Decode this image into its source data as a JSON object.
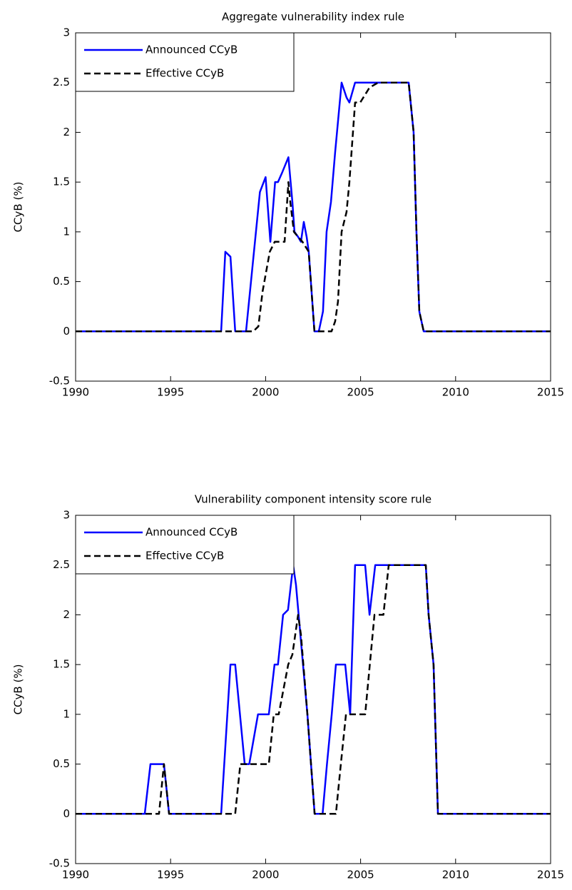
{
  "chart_data": [
    {
      "type": "line",
      "title": "Aggregate vulnerability index rule",
      "ylabel": "CCyB (%)",
      "xlim": [
        1990,
        2015
      ],
      "xticks": [
        1990,
        1995,
        2000,
        2005,
        2010,
        2015
      ],
      "ylim": [
        -0.5,
        3
      ],
      "yticks": [
        -0.5,
        0,
        0.5,
        1,
        1.5,
        2,
        2.5,
        3
      ],
      "legend": "northwest",
      "series": [
        {
          "name": "Announced CCyB",
          "color": "#0000ff",
          "style": "solid",
          "x": [
            1990,
            1997.66,
            1997.88,
            1998.15,
            1998.4,
            1998.97,
            1999.7,
            2000.0,
            2000.25,
            2000.5,
            2000.65,
            2000.88,
            2001.2,
            2001.41,
            2001.52,
            2001.71,
            2001.86,
            2002.01,
            2002.16,
            2002.27,
            2002.57,
            2002.8,
            2003.02,
            2003.21,
            2003.44,
            2003.66,
            2004.0,
            2004.26,
            2004.41,
            2004.71,
            2007.53,
            2007.79,
            2007.94,
            2008.09,
            2008.32,
            2015
          ],
          "values": [
            0,
            0,
            0.8,
            0.75,
            0,
            0,
            1.4,
            1.55,
            0.9,
            1.5,
            1.5,
            1.6,
            1.75,
            1.3,
            1.0,
            0.95,
            0.9,
            1.1,
            0.95,
            0.8,
            0,
            0,
            0.2,
            1.0,
            1.3,
            1.8,
            2.5,
            2.35,
            2.3,
            2.5,
            2.5,
            2.0,
            1.0,
            0.2,
            0,
            0
          ]
        },
        {
          "name": "Effective CCyB",
          "color": "#000000",
          "style": "dashed",
          "x": [
            1990,
            1999.35,
            1999.62,
            1999.84,
            2000.22,
            2000.48,
            2001.0,
            2001.2,
            2001.3,
            2001.49,
            2001.71,
            2001.94,
            2002.27,
            2002.57,
            2003.47,
            2003.66,
            2003.81,
            2004.0,
            2004.26,
            2004.41,
            2004.71,
            2004.98,
            2005.47,
            2005.92,
            2007.53,
            2007.79,
            2007.94,
            2008.09,
            2008.32,
            2015
          ],
          "values": [
            0,
            0,
            0.05,
            0.4,
            0.8,
            0.9,
            0.9,
            1.5,
            1.3,
            1.0,
            0.95,
            0.9,
            0.8,
            0,
            0,
            0.1,
            0.3,
            1.0,
            1.2,
            1.5,
            2.3,
            2.3,
            2.45,
            2.5,
            2.5,
            2.0,
            1.0,
            0.2,
            0,
            0
          ]
        }
      ]
    },
    {
      "type": "line",
      "title": "Vulnerability component intensity score rule",
      "ylabel": "CCyB (%)",
      "xlim": [
        1990,
        2015
      ],
      "xticks": [
        1990,
        1995,
        2000,
        2005,
        2010,
        2015
      ],
      "ylim": [
        -0.5,
        3
      ],
      "yticks": [
        -0.5,
        0,
        0.5,
        1,
        1.5,
        2,
        2.5,
        3
      ],
      "legend": "northwest",
      "series": [
        {
          "name": "Announced CCyB",
          "color": "#0000ff",
          "style": "solid",
          "x": [
            1990,
            1993.64,
            1993.94,
            1994.65,
            1994.92,
            1997.66,
            1998.15,
            1998.4,
            1998.9,
            1999.14,
            1999.6,
            2000.17,
            2000.47,
            2000.65,
            2000.92,
            2001.18,
            2001.45,
            2001.6,
            2002.2,
            2002.58,
            2003.0,
            2003.23,
            2003.48,
            2003.7,
            2004.19,
            2004.45,
            2004.71,
            2005.24,
            2005.47,
            2005.77,
            2008.43,
            2008.58,
            2008.84,
            2009.07,
            2015
          ],
          "values": [
            0,
            0,
            0.5,
            0.5,
            0,
            0,
            1.5,
            1.5,
            0.5,
            0.5,
            1.0,
            1.0,
            1.5,
            1.5,
            2.0,
            2.05,
            2.5,
            2.3,
            1.0,
            0,
            0,
            0.5,
            1.0,
            1.5,
            1.5,
            1.0,
            2.5,
            2.5,
            2.0,
            2.5,
            2.5,
            2.0,
            1.5,
            0,
            0
          ]
        },
        {
          "name": "Effective CCyB",
          "color": "#000000",
          "style": "dashed",
          "x": [
            1990,
            1994.39,
            1994.65,
            1994.92,
            1998.4,
            1998.67,
            2000.17,
            2000.43,
            2000.69,
            2001.19,
            2001.41,
            2001.71,
            2001.86,
            2002.2,
            2002.58,
            2003.7,
            2003.96,
            2004.23,
            2005.24,
            2005.73,
            2006.2,
            2006.48,
            2008.43,
            2008.58,
            2008.84,
            2009.07,
            2015
          ],
          "values": [
            0,
            0,
            0.5,
            0,
            0,
            0.5,
            0.5,
            1.0,
            1.0,
            1.5,
            1.6,
            2.0,
            1.8,
            1.0,
            0,
            0,
            0.5,
            1.0,
            1.0,
            2.0,
            2.0,
            2.5,
            2.5,
            2.0,
            1.5,
            0,
            0
          ]
        }
      ]
    }
  ]
}
